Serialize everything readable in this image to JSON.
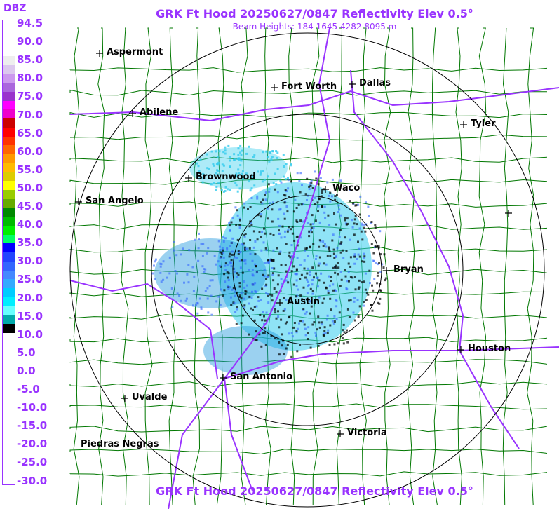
{
  "header": {
    "title": "GRK Ft Hood 20250627/0847 Reflectivity Elev 0.5°",
    "subtitle": "Beam Heights: 184 1645 4282 8095 m",
    "footer_title": "GRK Ft Hood 20250627/0847 Reflectivity Elev 0.5°"
  },
  "legend": {
    "unit_label": "DBZ",
    "values": [
      "94.5",
      "90.0",
      "85.0",
      "80.0",
      "75.0",
      "70.0",
      "65.0",
      "60.0",
      "55.0",
      "50.0",
      "45.0",
      "40.0",
      "35.0",
      "30.0",
      "25.0",
      "20.0",
      "15.0",
      "10.0",
      "5.0",
      "0.0",
      "-5.0",
      "-10.0",
      "-15.0",
      "-20.0",
      "-25.0",
      "-30.0"
    ],
    "colors": [
      "#ffffff",
      "#ffffff",
      "#ffffff",
      "#ffffff",
      "#eeeeee",
      "#dcc8ee",
      "#cc99ee",
      "#aa66dd",
      "#9933cc",
      "#ff00ff",
      "#ee00cc",
      "#cc0000",
      "#ff0000",
      "#ff3300",
      "#ff6600",
      "#ff9900",
      "#ffbb00",
      "#ddcc00",
      "#ffff00",
      "#99cc00",
      "#66aa00",
      "#008800",
      "#00bb00",
      "#00ee00",
      "#00ff66",
      "#0000ff",
      "#2244ff",
      "#3366ff",
      "#4488ff",
      "#33aaff",
      "#00ccff",
      "#00eeff",
      "#66ffff",
      "#00aaaa",
      "#000000",
      "#ffffff",
      "#ffffff",
      "#ffffff",
      "#ffffff",
      "#ffffff",
      "#ffffff",
      "#ffffff",
      "#ffffff",
      "#ffffff",
      "#ffffff",
      "#ffffff",
      "#ffffff",
      "#ffffff",
      "#ffffff",
      "#ffffff",
      "#ffffff",
      "#ffffff"
    ]
  },
  "map": {
    "colors": {
      "county_lines": "#007700",
      "highways": "#9933ff",
      "range_rings": "#000000",
      "echo_light": "#33ccee",
      "echo_mid": "#2299dd",
      "echo_dark": "#3366ff"
    },
    "cities": [
      "Aspermont",
      "Fort Worth",
      "Dallas",
      "Abilene",
      "Tyler",
      "Brownwood",
      "Waco",
      "San Angelo",
      "Bryan",
      "Austin",
      "Houston",
      "San Antonio",
      "Uvalde",
      "Victoria",
      "Piedras Negras"
    ]
  }
}
